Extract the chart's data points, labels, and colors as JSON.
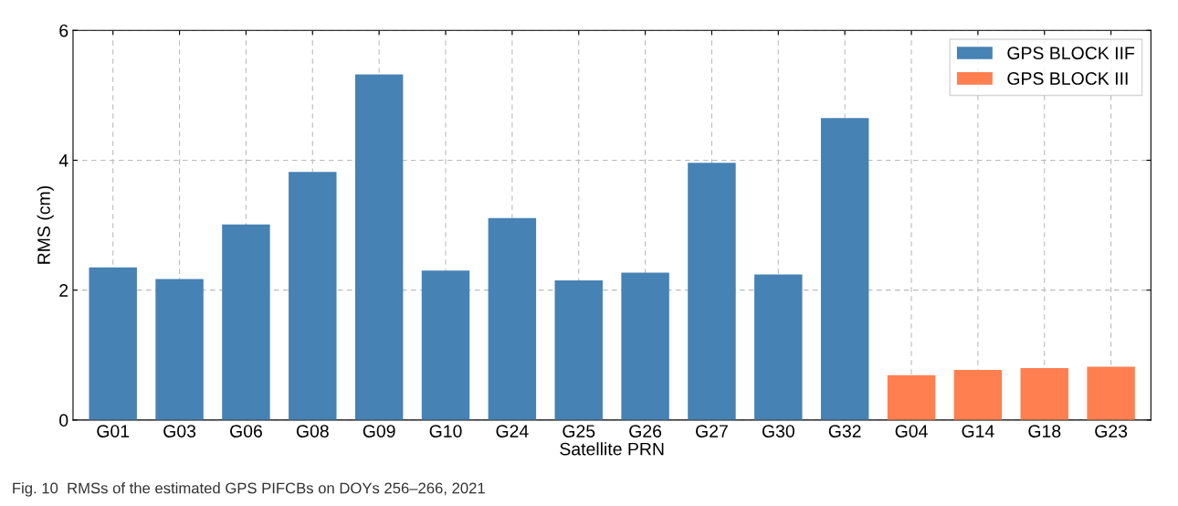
{
  "chart_data": {
    "type": "bar",
    "xlabel": "Satellite PRN",
    "ylabel": "RMS (cm)",
    "categories": [
      "G01",
      "G03",
      "G06",
      "G08",
      "G09",
      "G10",
      "G24",
      "G25",
      "G26",
      "G27",
      "G30",
      "G32",
      "G04",
      "G14",
      "G18",
      "G23"
    ],
    "series": [
      {
        "name": "GPS BLOCK IIF",
        "color": "#4682b4",
        "values": [
          2.35,
          2.17,
          3.01,
          3.82,
          5.32,
          2.3,
          3.11,
          2.15,
          2.27,
          3.96,
          2.24,
          4.65,
          null,
          null,
          null,
          null
        ]
      },
      {
        "name": "GPS BLOCK III",
        "color": "#ff7f50",
        "values": [
          null,
          null,
          null,
          null,
          null,
          null,
          null,
          null,
          null,
          null,
          null,
          null,
          0.69,
          0.77,
          0.8,
          0.82
        ]
      }
    ],
    "ylim": [
      0,
      6
    ],
    "yticks": [
      0,
      2,
      4,
      6
    ],
    "grid": true,
    "legend": "top right",
    "annotations": [
      "Fig. 10  RMSs of the estimated GPS PIFCBs on DOYs 256–266, 2021"
    ]
  }
}
